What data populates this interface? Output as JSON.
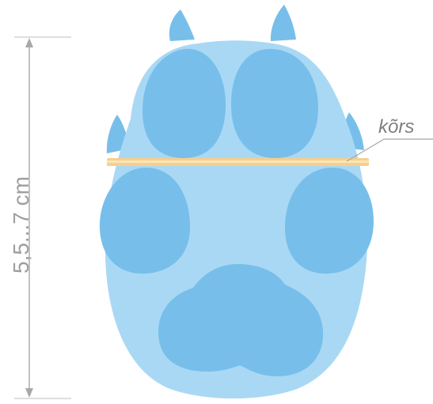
{
  "measurement": {
    "text": "5,5...7 cm"
  },
  "callout": {
    "label": "kõrs"
  },
  "colors": {
    "paw_body": "#a9d8f5",
    "pad": "#77bfea",
    "claw": "#77bfea",
    "measure_line": "#a8a8a8",
    "straw": "#f6cf8c",
    "straw_core": "#fbe6b6"
  }
}
